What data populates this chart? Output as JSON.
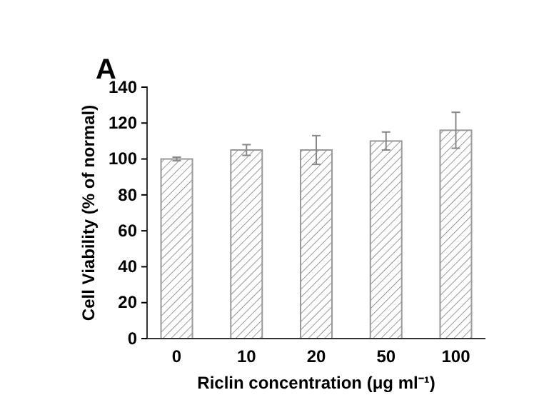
{
  "chart_data": {
    "type": "bar",
    "title": "A",
    "xlabel": "Riclin concentration (μg ml⁻¹)",
    "ylabel": "Cell Viability (% of normal)",
    "categories": [
      "0",
      "10",
      "20",
      "50",
      "100"
    ],
    "values": [
      100,
      105,
      105,
      110,
      116
    ],
    "errors": [
      1,
      3,
      8,
      5,
      10
    ],
    "color": "#999999",
    "ylim": [
      0,
      140
    ],
    "yticks": [
      0,
      20,
      40,
      60,
      80,
      100,
      120,
      140
    ],
    "grid": false
  }
}
